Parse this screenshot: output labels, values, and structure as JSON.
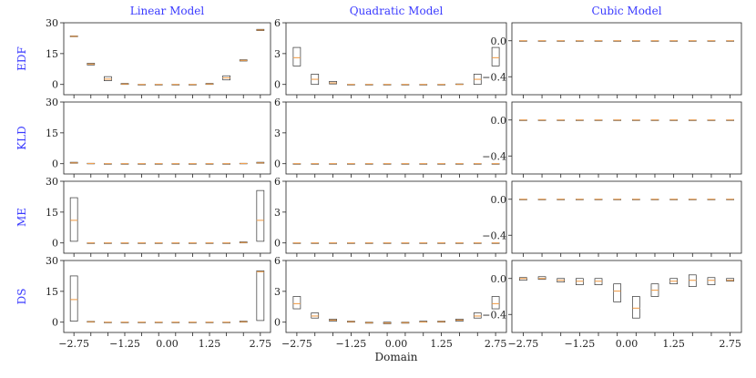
{
  "chart_data": {
    "type": "box",
    "column_titles": [
      "Linear Model",
      "Quadratic Model",
      "Cubic Model"
    ],
    "row_labels": [
      "EDF",
      "KLD",
      "ME",
      "DS"
    ],
    "xlabel": "Domain",
    "x_ticks": [
      "-2.75",
      "-1.25",
      "0.00",
      "1.25",
      "2.75"
    ],
    "x_positions": [
      -2.75,
      -2.25,
      -1.75,
      -1.25,
      -0.75,
      -0.25,
      0.25,
      0.75,
      1.25,
      1.75,
      2.25,
      2.75
    ],
    "columns": [
      {
        "ylim": [
          -5,
          30
        ],
        "y_ticks": [
          0,
          15,
          30
        ],
        "y_tick_labels": [
          "0",
          "15",
          "30"
        ]
      },
      {
        "ylim": [
          -1,
          6
        ],
        "y_ticks": [
          0,
          3,
          6
        ],
        "y_tick_labels": [
          "0",
          "3",
          "6"
        ]
      },
      {
        "ylim": [
          -0.6,
          0.2
        ],
        "y_ticks": [
          0.0,
          -0.4
        ],
        "y_tick_labels": [
          "0.0",
          "−0.4"
        ]
      }
    ],
    "panels": [
      [
        {
          "boxes": [
            [
              23.2,
              23.6,
              23.4
            ],
            [
              9.5,
              10.3,
              9.9
            ],
            [
              1.8,
              3.8,
              2.6
            ],
            [
              0,
              0.5,
              0.2
            ],
            [
              0,
              0,
              0
            ],
            [
              0,
              0,
              0
            ],
            [
              0,
              0,
              0
            ],
            [
              0,
              0,
              0
            ],
            [
              0,
              0.5,
              0.2
            ],
            [
              2.2,
              4.2,
              3.2
            ],
            [
              11.4,
              12.0,
              11.7
            ],
            [
              26.2,
              26.8,
              26.5
            ]
          ]
        },
        {
          "boxes": [
            [
              0.2,
              0.7,
              0.4
            ],
            [
              0,
              0.2,
              0.1
            ],
            [
              0,
              0,
              0
            ],
            [
              0,
              0,
              0
            ],
            [
              0,
              0,
              0
            ],
            [
              0,
              0,
              0
            ],
            [
              0,
              0,
              0
            ],
            [
              0,
              0,
              0
            ],
            [
              0,
              0,
              0
            ],
            [
              0,
              0,
              0
            ],
            [
              0,
              0.2,
              0.1
            ],
            [
              0.2,
              0.7,
              0.4
            ]
          ]
        },
        {
          "boxes": [
            [
              0.8,
              22.0,
              11.0
            ],
            [
              0,
              0,
              0
            ],
            [
              0,
              0,
              0
            ],
            [
              0,
              0,
              0
            ],
            [
              0,
              0,
              0
            ],
            [
              0,
              0,
              0
            ],
            [
              0,
              0,
              0
            ],
            [
              0,
              0,
              0
            ],
            [
              0,
              0,
              0
            ],
            [
              0,
              0,
              0
            ],
            [
              0,
              0.5,
              0.2
            ],
            [
              0.8,
              25.5,
              11.0
            ]
          ]
        },
        {
          "boxes": [
            [
              0.5,
              22.5,
              11.0
            ],
            [
              0,
              0.4,
              0.2
            ],
            [
              0,
              0,
              0
            ],
            [
              0,
              0,
              0
            ],
            [
              0,
              0,
              0
            ],
            [
              0,
              0,
              0
            ],
            [
              0,
              0,
              0
            ],
            [
              0,
              0,
              0
            ],
            [
              0,
              0,
              0
            ],
            [
              0,
              0,
              0
            ],
            [
              0,
              0.5,
              0.2
            ],
            [
              0.8,
              25.0,
              24.5
            ]
          ]
        }
      ],
      [
        {
          "boxes": [
            [
              1.8,
              3.6,
              2.6
            ],
            [
              0,
              1.0,
              0.5
            ],
            [
              0.05,
              0.3,
              0.15
            ],
            [
              0,
              0,
              0
            ],
            [
              0,
              0,
              0
            ],
            [
              0,
              0,
              0
            ],
            [
              0,
              0,
              0
            ],
            [
              0,
              0,
              0
            ],
            [
              0,
              0,
              0
            ],
            [
              0,
              0.05,
              0
            ],
            [
              0,
              1.0,
              0.5
            ],
            [
              1.8,
              3.6,
              2.6
            ]
          ]
        },
        {
          "boxes": [
            [
              0,
              0,
              0
            ],
            [
              0,
              0,
              0
            ],
            [
              0,
              0,
              0
            ],
            [
              0,
              0,
              0
            ],
            [
              0,
              0,
              0
            ],
            [
              0,
              0,
              0
            ],
            [
              0,
              0,
              0
            ],
            [
              0,
              0,
              0
            ],
            [
              0,
              0,
              0
            ],
            [
              0,
              0,
              0
            ],
            [
              0,
              0,
              0
            ],
            [
              0,
              0,
              0
            ]
          ]
        },
        {
          "boxes": [
            [
              0,
              0,
              0
            ],
            [
              0,
              0,
              0
            ],
            [
              0,
              0,
              0
            ],
            [
              0,
              0,
              0
            ],
            [
              0,
              0,
              0
            ],
            [
              0,
              0,
              0
            ],
            [
              0,
              0,
              0
            ],
            [
              0,
              0,
              0
            ],
            [
              0,
              0,
              0
            ],
            [
              0,
              0,
              0
            ],
            [
              0,
              0,
              0
            ],
            [
              0,
              0,
              0
            ]
          ]
        },
        {
          "boxes": [
            [
              1.3,
              2.5,
              1.8
            ],
            [
              0.4,
              0.9,
              0.6
            ],
            [
              0.1,
              0.3,
              0.2
            ],
            [
              0,
              0.1,
              0.05
            ],
            [
              -0.1,
              0,
              -0.05
            ],
            [
              -0.15,
              0,
              -0.08
            ],
            [
              -0.1,
              0,
              -0.05
            ],
            [
              0,
              0.1,
              0.02
            ],
            [
              0,
              0.1,
              0.05
            ],
            [
              0.1,
              0.3,
              0.2
            ],
            [
              0.4,
              0.9,
              0.6
            ],
            [
              1.3,
              2.5,
              1.8
            ]
          ]
        }
      ],
      [
        {
          "boxes": [
            [
              0,
              0,
              0
            ],
            [
              0,
              0,
              0
            ],
            [
              0,
              0,
              0
            ],
            [
              0,
              0,
              0
            ],
            [
              0,
              0,
              0
            ],
            [
              0,
              0,
              0
            ],
            [
              0,
              0,
              0
            ],
            [
              0,
              0,
              0
            ],
            [
              0,
              0,
              0
            ],
            [
              0,
              0,
              0
            ],
            [
              0,
              0,
              0
            ],
            [
              0,
              0,
              0
            ]
          ]
        },
        {
          "boxes": [
            [
              0,
              0,
              0
            ],
            [
              0,
              0,
              0
            ],
            [
              0,
              0,
              0
            ],
            [
              0,
              0,
              0
            ],
            [
              0,
              0,
              0
            ],
            [
              0,
              0,
              0
            ],
            [
              0,
              0,
              0
            ],
            [
              0,
              0,
              0
            ],
            [
              0,
              0,
              0
            ],
            [
              0,
              0,
              0
            ],
            [
              0,
              0,
              0
            ],
            [
              0,
              0,
              0
            ]
          ]
        },
        {
          "boxes": [
            [
              0,
              0,
              0
            ],
            [
              0,
              0,
              0
            ],
            [
              0,
              0,
              0
            ],
            [
              0,
              0,
              0
            ],
            [
              0,
              0,
              0
            ],
            [
              0,
              0,
              0
            ],
            [
              0,
              0,
              0
            ],
            [
              0,
              0,
              0
            ],
            [
              0,
              0,
              0
            ],
            [
              0,
              0,
              0
            ],
            [
              0,
              0,
              0
            ],
            [
              0,
              0,
              0
            ]
          ]
        },
        {
          "boxes": [
            [
              -0.02,
              0.01,
              0
            ],
            [
              -0.01,
              0.02,
              0
            ],
            [
              -0.04,
              0,
              -0.02
            ],
            [
              -0.07,
              0,
              -0.03
            ],
            [
              -0.07,
              0,
              -0.03
            ],
            [
              -0.26,
              -0.06,
              -0.14
            ],
            [
              -0.44,
              -0.2,
              -0.33
            ],
            [
              -0.2,
              -0.06,
              -0.13
            ],
            [
              -0.06,
              0,
              -0.03
            ],
            [
              -0.09,
              0.04,
              -0.02
            ],
            [
              -0.07,
              0.01,
              -0.02
            ],
            [
              -0.03,
              0,
              -0.02
            ]
          ]
        }
      ]
    ]
  }
}
